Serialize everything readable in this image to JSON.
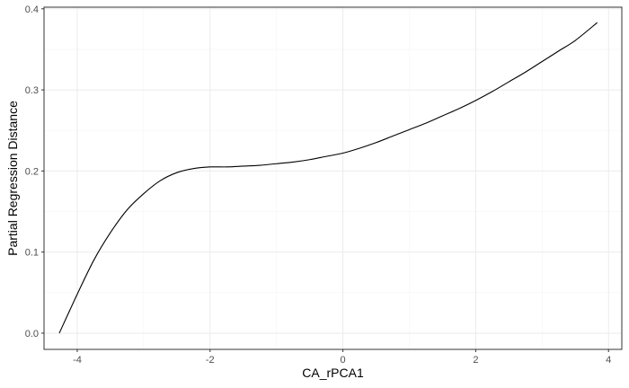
{
  "chart_data": {
    "type": "line",
    "title": "",
    "xlabel": "CA_rPCA1",
    "ylabel": "Partial Regression Distance",
    "xlim": [
      -4.5,
      4.2
    ],
    "ylim": [
      -0.02,
      0.402
    ],
    "x_ticks": [
      -4,
      -2,
      0,
      2,
      4
    ],
    "y_ticks": [
      0.0,
      0.1,
      0.2,
      0.3,
      0.4
    ],
    "x_tick_labels": [
      "-4",
      "-2",
      "0",
      "2",
      "4"
    ],
    "y_tick_labels": [
      "0.0",
      "0.1",
      "0.2",
      "0.3",
      "0.4"
    ],
    "grid": true,
    "theme": "bw",
    "colors": {
      "line": "#000000",
      "panel_border": "#333333",
      "grid_major": "#ebebeb",
      "grid_minor": "#f5f5f5"
    },
    "series": [
      {
        "x": [
          -4.27,
          -4.0,
          -3.75,
          -3.5,
          -3.25,
          -3.0,
          -2.75,
          -2.5,
          -2.25,
          -2.0,
          -1.75,
          -1.5,
          -1.25,
          -1.0,
          -0.75,
          -0.5,
          -0.25,
          0.0,
          0.25,
          0.5,
          0.75,
          1.0,
          1.25,
          1.5,
          1.75,
          2.0,
          2.25,
          2.5,
          2.75,
          3.0,
          3.25,
          3.5,
          3.83
        ],
        "y": [
          0.0,
          0.048,
          0.09,
          0.124,
          0.152,
          0.172,
          0.188,
          0.198,
          0.203,
          0.205,
          0.205,
          0.206,
          0.207,
          0.209,
          0.211,
          0.214,
          0.218,
          0.222,
          0.228,
          0.235,
          0.243,
          0.251,
          0.259,
          0.268,
          0.277,
          0.287,
          0.298,
          0.31,
          0.322,
          0.335,
          0.348,
          0.361,
          0.383
        ]
      }
    ]
  }
}
